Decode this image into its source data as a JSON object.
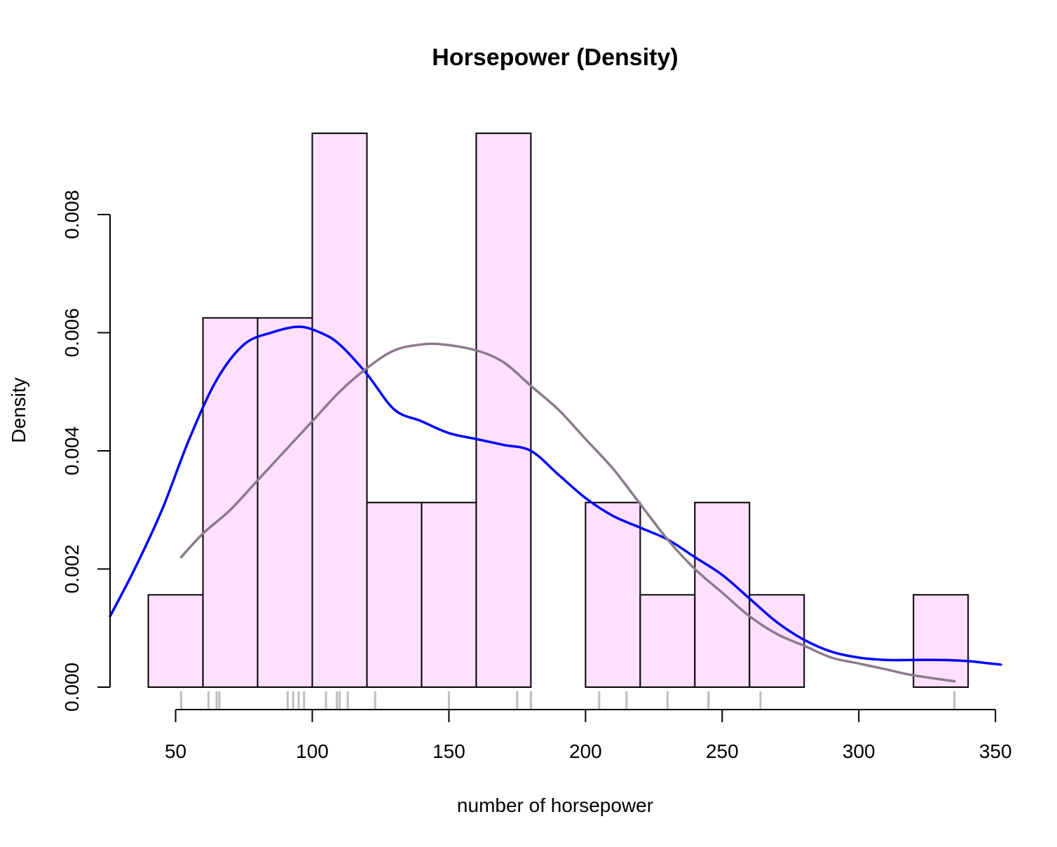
{
  "chart_data": {
    "type": "bar",
    "title": "Horsepower (Density)",
    "xlabel": "number of horsepower",
    "ylabel": "Density",
    "xlim": [
      26,
      352
    ],
    "ylim": [
      0,
      0.0094
    ],
    "x_ticks": [
      "50",
      "100",
      "150",
      "200",
      "250",
      "300",
      "350"
    ],
    "y_ticks": [
      "0.000",
      "0.002",
      "0.004",
      "0.006",
      "0.008"
    ],
    "histogram": {
      "breaks": [
        40,
        60,
        80,
        100,
        120,
        140,
        160,
        180,
        200,
        220,
        240,
        260,
        280,
        300,
        320,
        340
      ],
      "density": [
        0.0015625,
        0.00625,
        0.00625,
        0.009375,
        0.003125,
        0.003125,
        0.009375,
        0,
        0.003125,
        0.0015625,
        0.003125,
        0.0015625,
        0,
        0,
        0.0015625
      ],
      "fill": "#FFE0FF",
      "border": "#000000"
    },
    "rug": [
      52,
      62,
      65,
      66,
      66,
      91,
      93,
      95,
      97,
      105,
      109,
      110,
      110,
      113,
      123,
      150,
      175,
      175,
      180,
      180,
      180,
      205,
      215,
      230,
      245,
      245,
      245,
      264,
      335
    ],
    "rug_color": "#BEBEBE",
    "series": [
      {
        "color": "#0000FF",
        "x": [
          26,
          35,
          45,
          55,
          65,
          75,
          85,
          95,
          103,
          110,
          120,
          130,
          140,
          150,
          160,
          170,
          180,
          190,
          200,
          210,
          220,
          230,
          240,
          250,
          260,
          270,
          280,
          290,
          300,
          310,
          320,
          330,
          340,
          352
        ],
        "y": [
          0.0012,
          0.002,
          0.003,
          0.0042,
          0.0052,
          0.0058,
          0.006,
          0.0061,
          0.006,
          0.0058,
          0.0053,
          0.0047,
          0.0045,
          0.0043,
          0.0042,
          0.0041,
          0.004,
          0.0036,
          0.0032,
          0.0029,
          0.0027,
          0.0025,
          0.0022,
          0.0019,
          0.0015,
          0.0011,
          0.0008,
          0.0006,
          0.0005,
          0.00046,
          0.00046,
          0.00046,
          0.00044,
          0.00038
        ]
      },
      {
        "color": "#8B7B8B",
        "x": [
          52,
          60,
          70,
          80,
          90,
          100,
          110,
          120,
          130,
          140,
          148,
          160,
          170,
          180,
          190,
          200,
          210,
          220,
          230,
          240,
          250,
          260,
          270,
          280,
          290,
          300,
          310,
          320,
          335
        ],
        "y": [
          0.0022,
          0.0026,
          0.003,
          0.0035,
          0.004,
          0.0045,
          0.005,
          0.0054,
          0.0057,
          0.0058,
          0.0058,
          0.0057,
          0.0055,
          0.0051,
          0.0047,
          0.0042,
          0.0037,
          0.0031,
          0.0025,
          0.002,
          0.0016,
          0.0012,
          0.0009,
          0.0007,
          0.0005,
          0.0004,
          0.0003,
          0.0002,
          0.0001
        ]
      }
    ]
  }
}
